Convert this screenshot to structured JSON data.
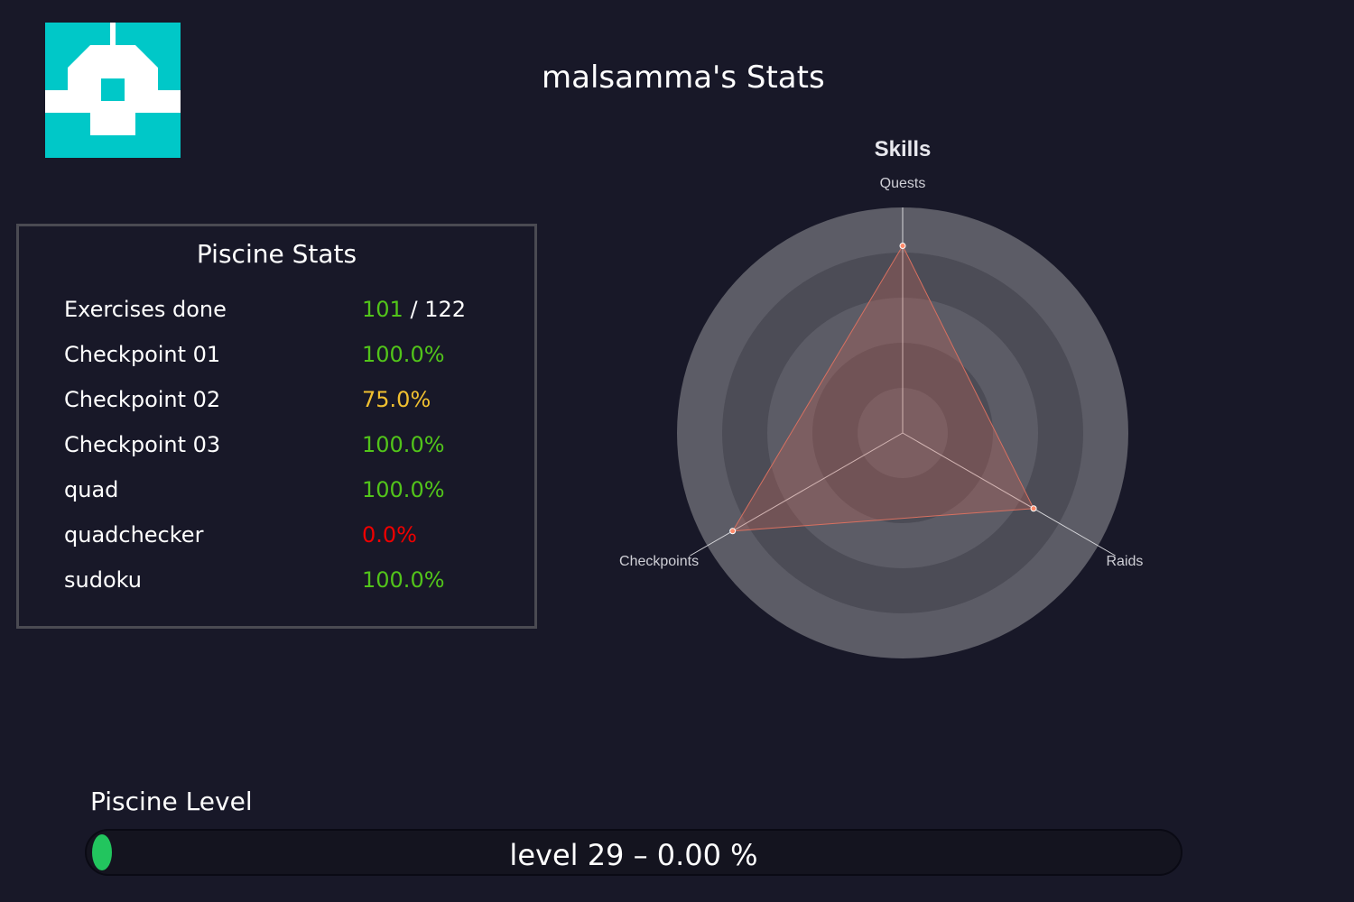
{
  "header": {
    "title": "malsamma's Stats"
  },
  "avatar": {
    "icon": "identicon-avatar",
    "color": "#00c8c8",
    "background": "#ffffff"
  },
  "piscine_stats": {
    "title": "Piscine Stats",
    "exercises": {
      "label": "Exercises done",
      "done": "101",
      "separator": "/",
      "total": "122"
    },
    "rows": [
      {
        "label": "Checkpoint 01",
        "value": "100.0%",
        "status": "green"
      },
      {
        "label": "Checkpoint 02",
        "value": "75.0%",
        "status": "yellow"
      },
      {
        "label": "Checkpoint 03",
        "value": "100.0%",
        "status": "green"
      },
      {
        "label": "quad",
        "value": "100.0%",
        "status": "green"
      },
      {
        "label": "quadchecker",
        "value": "0.0%",
        "status": "red"
      },
      {
        "label": "sudoku",
        "value": "100.0%",
        "status": "green"
      }
    ],
    "colors": {
      "green": "#52c41a",
      "yellow": "#f0c030",
      "red": "#ee0000"
    }
  },
  "chart_data": {
    "type": "radar",
    "title": "Skills",
    "axes": [
      "Quests",
      "Raids",
      "Checkpoints"
    ],
    "values": [
      83,
      67,
      87
    ],
    "rlim": [
      0,
      100
    ],
    "rings": 5,
    "colors": {
      "ring_light": "#5c5c66",
      "ring_dark": "#4c4c56",
      "axis_line": "#d8d8dc",
      "series_stroke": "#d87060",
      "series_fill": "rgba(200,100,85,0.30)",
      "point": "#ff8a6a"
    }
  },
  "level": {
    "title": "Piscine Level",
    "text": "level 29 – 0.00 %",
    "progress_percent": 0.0,
    "color": "#22c55e"
  }
}
